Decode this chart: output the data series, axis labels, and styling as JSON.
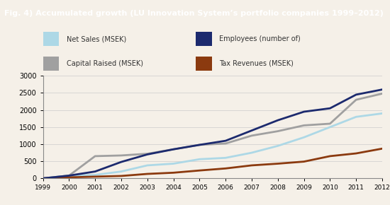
{
  "title": "Fig. 4) Accumulated growth (LU Innovation System’s portfolio companies 1999–2012)",
  "years": [
    1999,
    2000,
    2001,
    2002,
    2003,
    2004,
    2005,
    2006,
    2007,
    2008,
    2009,
    2010,
    2011,
    2012
  ],
  "net_sales": [
    0,
    80,
    100,
    200,
    380,
    430,
    560,
    600,
    750,
    950,
    1200,
    1500,
    1800,
    1900
  ],
  "employees": [
    0,
    80,
    200,
    480,
    700,
    850,
    980,
    1100,
    1400,
    1700,
    1950,
    2050,
    2450,
    2600
  ],
  "capital_raised": [
    0,
    80,
    650,
    670,
    720,
    850,
    980,
    1020,
    1250,
    1380,
    1550,
    1600,
    2300,
    2480
  ],
  "tax_revenues": [
    0,
    30,
    50,
    70,
    130,
    165,
    230,
    290,
    380,
    430,
    490,
    650,
    730,
    870
  ],
  "net_sales_color": "#add8e6",
  "employees_color": "#1c2a6e",
  "capital_raised_color": "#a0a0a0",
  "tax_revenues_color": "#8b3a0f",
  "title_bg_color": "#8c8c8c",
  "plot_bg_color": "#f5f0e8",
  "ylim": [
    0,
    3000
  ],
  "yticks": [
    0,
    500,
    1000,
    1500,
    2000,
    2500,
    3000
  ],
  "legend_labels": [
    "Net Sales (MSEK)",
    "Employees (number of)",
    "Capital Raised (MSEK)",
    "Tax Revenues (MSEK)"
  ]
}
